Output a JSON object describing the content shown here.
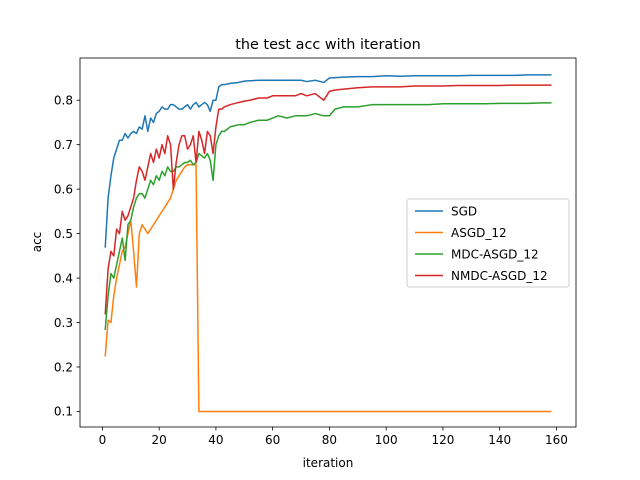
{
  "chart_data": {
    "type": "line",
    "title": "the test acc with iteration",
    "xlabel": "iteration",
    "ylabel": "acc",
    "xlim": [
      -7.9,
      166.9
    ],
    "ylim": [
      0.065,
      0.895
    ],
    "xticks": [
      0,
      20,
      40,
      60,
      80,
      100,
      120,
      140,
      160
    ],
    "yticks": [
      0.1,
      0.2,
      0.3,
      0.4,
      0.5,
      0.6,
      0.7,
      0.8
    ],
    "xtick_labels": [
      "0",
      "20",
      "40",
      "60",
      "80",
      "100",
      "120",
      "140",
      "160"
    ],
    "ytick_labels": [
      "0.1",
      "0.2",
      "0.3",
      "0.4",
      "0.5",
      "0.6",
      "0.7",
      "0.8"
    ],
    "grid": false,
    "legend_position": "center-right",
    "series": [
      {
        "name": "SGD",
        "color": "#1f77b4",
        "x": [
          1,
          2,
          3,
          4,
          5,
          6,
          7,
          8,
          9,
          10,
          11,
          12,
          13,
          14,
          15,
          16,
          17,
          18,
          19,
          20,
          21,
          22,
          23,
          24,
          25,
          26,
          27,
          28,
          29,
          30,
          31,
          32,
          33,
          34,
          35,
          36,
          37,
          38,
          39,
          40,
          41,
          42,
          43,
          45,
          48,
          50,
          55,
          60,
          65,
          70,
          72,
          75,
          78,
          80,
          85,
          90,
          95,
          100,
          105,
          110,
          115,
          120,
          125,
          130,
          135,
          140,
          145,
          150,
          155,
          158
        ],
        "y": [
          0.47,
          0.58,
          0.63,
          0.67,
          0.69,
          0.71,
          0.71,
          0.725,
          0.715,
          0.725,
          0.73,
          0.725,
          0.74,
          0.735,
          0.765,
          0.73,
          0.76,
          0.75,
          0.77,
          0.775,
          0.785,
          0.78,
          0.78,
          0.79,
          0.79,
          0.785,
          0.78,
          0.78,
          0.785,
          0.79,
          0.78,
          0.79,
          0.795,
          0.785,
          0.79,
          0.795,
          0.79,
          0.775,
          0.8,
          0.8,
          0.83,
          0.835,
          0.835,
          0.838,
          0.84,
          0.843,
          0.845,
          0.845,
          0.845,
          0.845,
          0.842,
          0.845,
          0.84,
          0.85,
          0.852,
          0.853,
          0.853,
          0.855,
          0.854,
          0.855,
          0.855,
          0.855,
          0.855,
          0.856,
          0.856,
          0.856,
          0.856,
          0.857,
          0.857,
          0.857
        ]
      },
      {
        "name": "ASGD_12",
        "color": "#ff7f0e",
        "x": [
          1,
          2,
          3,
          4,
          5,
          6,
          7,
          8,
          9,
          10,
          11,
          12,
          13,
          14,
          15,
          16,
          17,
          18,
          19,
          20,
          21,
          22,
          23,
          24,
          25,
          26,
          27,
          28,
          29,
          30,
          31,
          32,
          33,
          34,
          35,
          158
        ],
        "y": [
          0.225,
          0.305,
          0.3,
          0.36,
          0.4,
          0.43,
          0.46,
          0.47,
          0.5,
          0.53,
          0.46,
          0.38,
          0.5,
          0.52,
          0.51,
          0.5,
          0.51,
          0.52,
          0.53,
          0.54,
          0.55,
          0.56,
          0.57,
          0.58,
          0.6,
          0.62,
          0.63,
          0.64,
          0.65,
          0.655,
          0.655,
          0.655,
          0.655,
          0.1,
          0.1,
          0.1
        ]
      },
      {
        "name": "MDC-ASGD_12",
        "color": "#2ca02c",
        "x": [
          1,
          2,
          3,
          4,
          5,
          6,
          7,
          8,
          9,
          10,
          11,
          12,
          13,
          14,
          15,
          16,
          17,
          18,
          19,
          20,
          21,
          22,
          23,
          24,
          25,
          26,
          27,
          28,
          29,
          30,
          31,
          32,
          33,
          34,
          35,
          36,
          37,
          38,
          39,
          40,
          41,
          42,
          43,
          45,
          48,
          50,
          52,
          55,
          58,
          60,
          62,
          65,
          68,
          70,
          72,
          75,
          78,
          80,
          82,
          85,
          90,
          95,
          100,
          105,
          110,
          115,
          120,
          125,
          130,
          135,
          140,
          145,
          150,
          155,
          158
        ],
        "y": [
          0.285,
          0.36,
          0.41,
          0.4,
          0.43,
          0.46,
          0.49,
          0.44,
          0.52,
          0.53,
          0.56,
          0.58,
          0.59,
          0.59,
          0.58,
          0.6,
          0.62,
          0.61,
          0.63,
          0.62,
          0.64,
          0.63,
          0.65,
          0.64,
          0.64,
          0.65,
          0.65,
          0.655,
          0.66,
          0.66,
          0.665,
          0.655,
          0.66,
          0.68,
          0.675,
          0.67,
          0.68,
          0.665,
          0.62,
          0.7,
          0.72,
          0.73,
          0.73,
          0.74,
          0.745,
          0.745,
          0.75,
          0.755,
          0.755,
          0.76,
          0.765,
          0.76,
          0.765,
          0.765,
          0.765,
          0.77,
          0.765,
          0.765,
          0.78,
          0.785,
          0.785,
          0.79,
          0.79,
          0.79,
          0.79,
          0.79,
          0.792,
          0.792,
          0.792,
          0.792,
          0.793,
          0.793,
          0.793,
          0.794,
          0.794
        ]
      },
      {
        "name": "NMDC-ASGD_12",
        "color": "#d62728",
        "x": [
          1,
          2,
          3,
          4,
          5,
          6,
          7,
          8,
          9,
          10,
          11,
          12,
          13,
          14,
          15,
          16,
          17,
          18,
          19,
          20,
          21,
          22,
          23,
          24,
          25,
          26,
          27,
          28,
          29,
          30,
          31,
          32,
          33,
          34,
          35,
          36,
          37,
          38,
          39,
          40,
          41,
          42,
          43,
          45,
          48,
          50,
          52,
          55,
          58,
          60,
          62,
          65,
          68,
          70,
          72,
          75,
          78,
          80,
          82,
          85,
          90,
          95,
          100,
          105,
          110,
          115,
          120,
          125,
          130,
          135,
          140,
          145,
          150,
          155,
          158
        ],
        "y": [
          0.32,
          0.42,
          0.46,
          0.45,
          0.51,
          0.5,
          0.55,
          0.53,
          0.54,
          0.56,
          0.58,
          0.62,
          0.65,
          0.64,
          0.62,
          0.65,
          0.68,
          0.66,
          0.69,
          0.67,
          0.7,
          0.68,
          0.72,
          0.7,
          0.6,
          0.66,
          0.7,
          0.72,
          0.72,
          0.69,
          0.7,
          0.72,
          0.66,
          0.73,
          0.71,
          0.68,
          0.73,
          0.72,
          0.68,
          0.74,
          0.78,
          0.78,
          0.785,
          0.79,
          0.795,
          0.798,
          0.8,
          0.805,
          0.805,
          0.81,
          0.81,
          0.81,
          0.81,
          0.815,
          0.81,
          0.815,
          0.8,
          0.82,
          0.823,
          0.825,
          0.828,
          0.83,
          0.83,
          0.83,
          0.832,
          0.832,
          0.832,
          0.833,
          0.833,
          0.833,
          0.833,
          0.834,
          0.834,
          0.834,
          0.834
        ]
      }
    ]
  }
}
